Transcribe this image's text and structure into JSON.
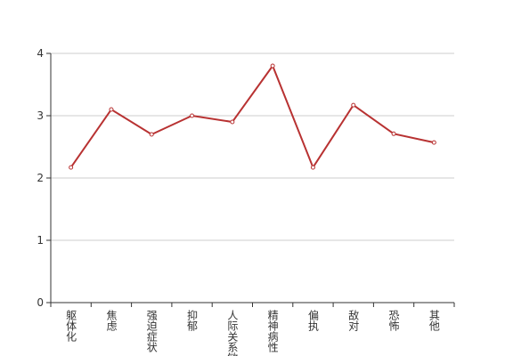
{
  "chart_data": {
    "type": "line",
    "categories": [
      "躯体化",
      "焦虑",
      "强迫症状",
      "抑郁",
      "人际关系敏感",
      "精神病性",
      "偏执",
      "敌对",
      "恐怖",
      "其他"
    ],
    "series": [
      {
        "values": [
          2.17,
          3.1,
          2.7,
          3.0,
          2.9,
          3.8,
          2.17,
          3.17,
          2.71,
          2.57
        ],
        "color": "#b83232"
      }
    ],
    "ylim": [
      0,
      4
    ],
    "yticks": [
      0,
      1,
      2,
      3,
      4
    ],
    "grid": true
  }
}
